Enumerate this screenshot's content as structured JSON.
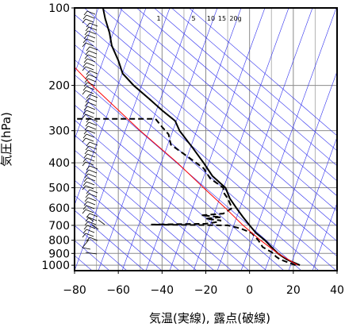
{
  "chart_data": {
    "type": "line",
    "xlabel": "気温(実線), 露点(破線)",
    "ylabel": "気圧(hPa)",
    "xlim": [
      -80,
      40
    ],
    "ylim": [
      1050,
      100
    ],
    "y_scale": "log",
    "x_ticks": [
      -80,
      -60,
      -40,
      -20,
      0,
      20,
      40
    ],
    "x_tick_labels": [
      "−80",
      "−60",
      "−40",
      "−20",
      "0",
      "20",
      "40"
    ],
    "y_ticks": [
      100,
      200,
      300,
      400,
      500,
      600,
      700,
      800,
      900,
      1000
    ],
    "y_tick_labels": [
      "100",
      "200",
      "300",
      "400",
      "500",
      "600",
      "700",
      "800",
      "900",
      "1000"
    ],
    "grid": true,
    "mixing_ratio_labels": [
      "1",
      "5",
      "10",
      "15",
      "20g"
    ],
    "series": [
      {
        "style": "solid",
        "color": "#000000",
        "points": [
          [
            1000,
            23
          ],
          [
            975,
            20
          ],
          [
            950,
            17
          ],
          [
            925,
            15
          ],
          [
            900,
            13
          ],
          [
            850,
            10
          ],
          [
            800,
            7
          ],
          [
            750,
            3
          ],
          [
            700,
            0
          ],
          [
            650,
            -3
          ],
          [
            600,
            -6
          ],
          [
            550,
            -9
          ],
          [
            500,
            -11
          ],
          [
            450,
            -17
          ],
          [
            400,
            -21
          ],
          [
            350,
            -26
          ],
          [
            300,
            -32
          ],
          [
            275,
            -34
          ],
          [
            250,
            -40
          ],
          [
            225,
            -46
          ],
          [
            200,
            -53
          ],
          [
            180,
            -58
          ],
          [
            160,
            -60
          ],
          [
            140,
            -63
          ],
          [
            125,
            -64
          ],
          [
            110,
            -66
          ],
          [
            100,
            -67
          ]
        ]
      },
      {
        "style": "dashed",
        "color": "#000000",
        "points": [
          [
            1000,
            21
          ],
          [
            950,
            14
          ],
          [
            925,
            12
          ],
          [
            900,
            11
          ],
          [
            850,
            6
          ],
          [
            800,
            4
          ],
          [
            750,
            1
          ],
          [
            720,
            -4
          ],
          [
            700,
            -10
          ],
          [
            695,
            -45
          ],
          [
            690,
            -20
          ],
          [
            680,
            -15
          ],
          [
            670,
            -13
          ],
          [
            660,
            -20
          ],
          [
            650,
            -13
          ],
          [
            640,
            -22
          ],
          [
            630,
            -12
          ],
          [
            600,
            -8
          ],
          [
            550,
            -10
          ],
          [
            520,
            -12
          ],
          [
            500,
            -12
          ],
          [
            460,
            -18
          ],
          [
            420,
            -21
          ],
          [
            380,
            -28
          ],
          [
            340,
            -36
          ],
          [
            310,
            -37
          ],
          [
            290,
            -40
          ],
          [
            270,
            -43
          ],
          [
            270,
            -79
          ]
        ]
      },
      {
        "style": "solid",
        "color": "#ff0000",
        "points": [
          [
            1000,
            22
          ],
          [
            900,
            13
          ],
          [
            800,
            5
          ],
          [
            700,
            -3
          ],
          [
            600,
            -11
          ],
          [
            500,
            -21
          ],
          [
            400,
            -33
          ],
          [
            300,
            -50
          ],
          [
            200,
            -72
          ],
          [
            170,
            -80
          ]
        ]
      }
    ]
  }
}
